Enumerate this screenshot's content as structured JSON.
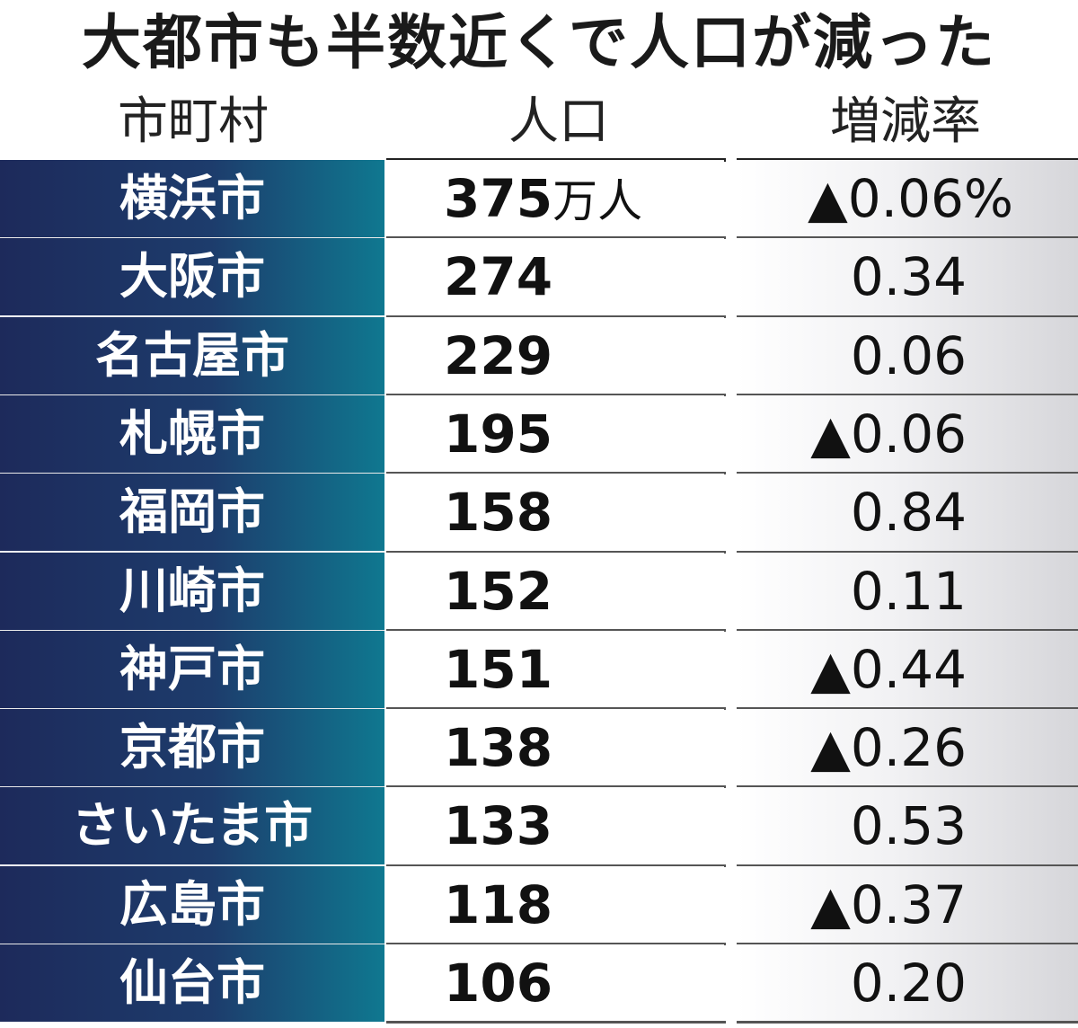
{
  "chart_data": {
    "type": "table",
    "title": "大都市も半数近くで人口が減った",
    "columns": [
      "市町村",
      "人口",
      "増減率"
    ],
    "pop_unit": "万人",
    "rate_unit": "%",
    "rows": [
      {
        "city": "横浜市",
        "population": "375",
        "rate": "▲0.06"
      },
      {
        "city": "大阪市",
        "population": "274",
        "rate": "0.34"
      },
      {
        "city": "名古屋市",
        "population": "229",
        "rate": "0.06"
      },
      {
        "city": "札幌市",
        "population": "195",
        "rate": "▲0.06"
      },
      {
        "city": "福岡市",
        "population": "158",
        "rate": "0.84"
      },
      {
        "city": "川崎市",
        "population": "152",
        "rate": "0.11"
      },
      {
        "city": "神戸市",
        "population": "151",
        "rate": "▲0.44"
      },
      {
        "city": "京都市",
        "population": "138",
        "rate": "▲0.26"
      },
      {
        "city": "さいたま市",
        "population": "133",
        "rate": "0.53"
      },
      {
        "city": "広島市",
        "population": "118",
        "rate": "▲0.37"
      },
      {
        "city": "仙台市",
        "population": "106",
        "rate": "0.20"
      }
    ]
  }
}
